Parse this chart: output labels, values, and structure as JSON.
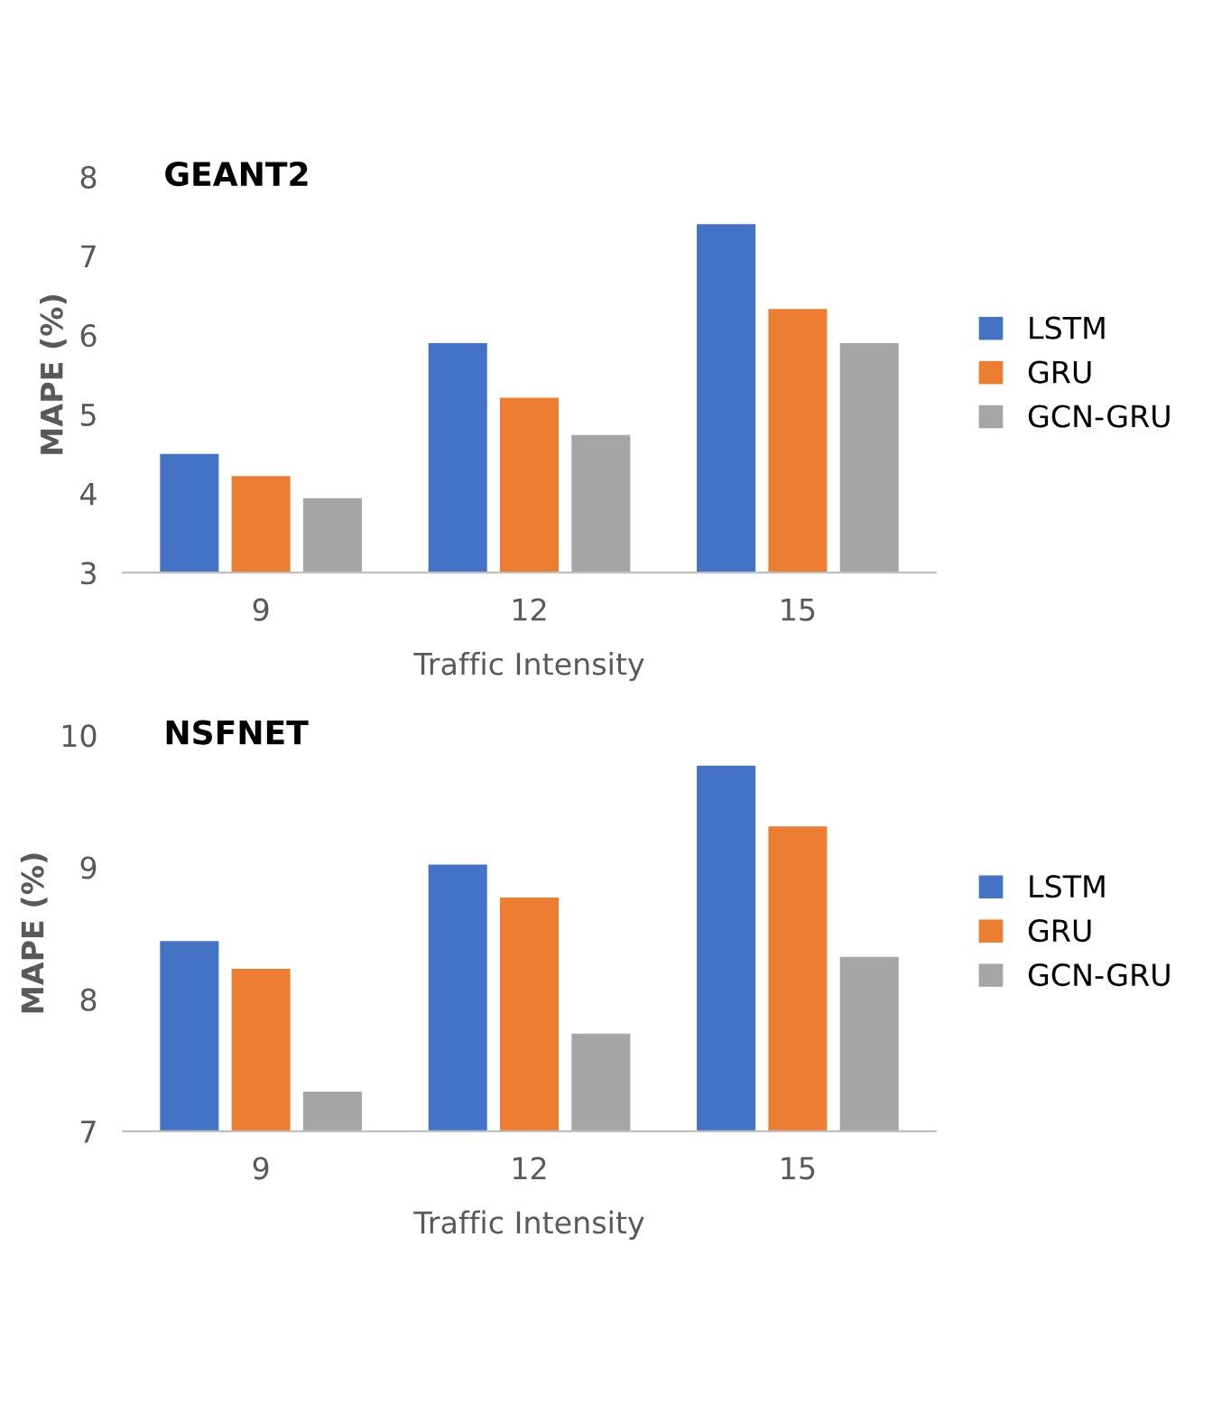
{
  "chart_data": [
    {
      "type": "bar",
      "title": "GEANT2",
      "xlabel": "Traffic Intensity",
      "ylabel": "MAPE (%)",
      "categories": [
        "9",
        "12",
        "15"
      ],
      "series": [
        {
          "name": "LSTM",
          "color": "#4472c4",
          "values": [
            4.5,
            5.9,
            7.4
          ]
        },
        {
          "name": "GRU",
          "color": "#ed7d31",
          "values": [
            4.22,
            5.21,
            6.33
          ]
        },
        {
          "name": "GCN-GRU",
          "color": "#a5a5a5",
          "values": [
            3.94,
            4.74,
            5.9
          ]
        }
      ],
      "ylim": [
        3,
        8
      ],
      "yticks": [
        3,
        4,
        5,
        6,
        7,
        8
      ],
      "grid": false,
      "legend": "right"
    },
    {
      "type": "bar",
      "title": "NSFNET",
      "xlabel": "Traffic Intensity",
      "ylabel": "MAPE (%)",
      "categories": [
        "9",
        "12",
        "15"
      ],
      "series": [
        {
          "name": "LSTM",
          "color": "#4472c4",
          "values": [
            8.44,
            9.02,
            9.77
          ]
        },
        {
          "name": "GRU",
          "color": "#ed7d31",
          "values": [
            8.23,
            8.77,
            9.31
          ]
        },
        {
          "name": "GCN-GRU",
          "color": "#a5a5a5",
          "values": [
            7.3,
            7.74,
            8.32
          ]
        }
      ],
      "ylim": [
        7,
        10
      ],
      "yticks": [
        7,
        8,
        9,
        10
      ],
      "grid": false,
      "legend": "right"
    }
  ]
}
